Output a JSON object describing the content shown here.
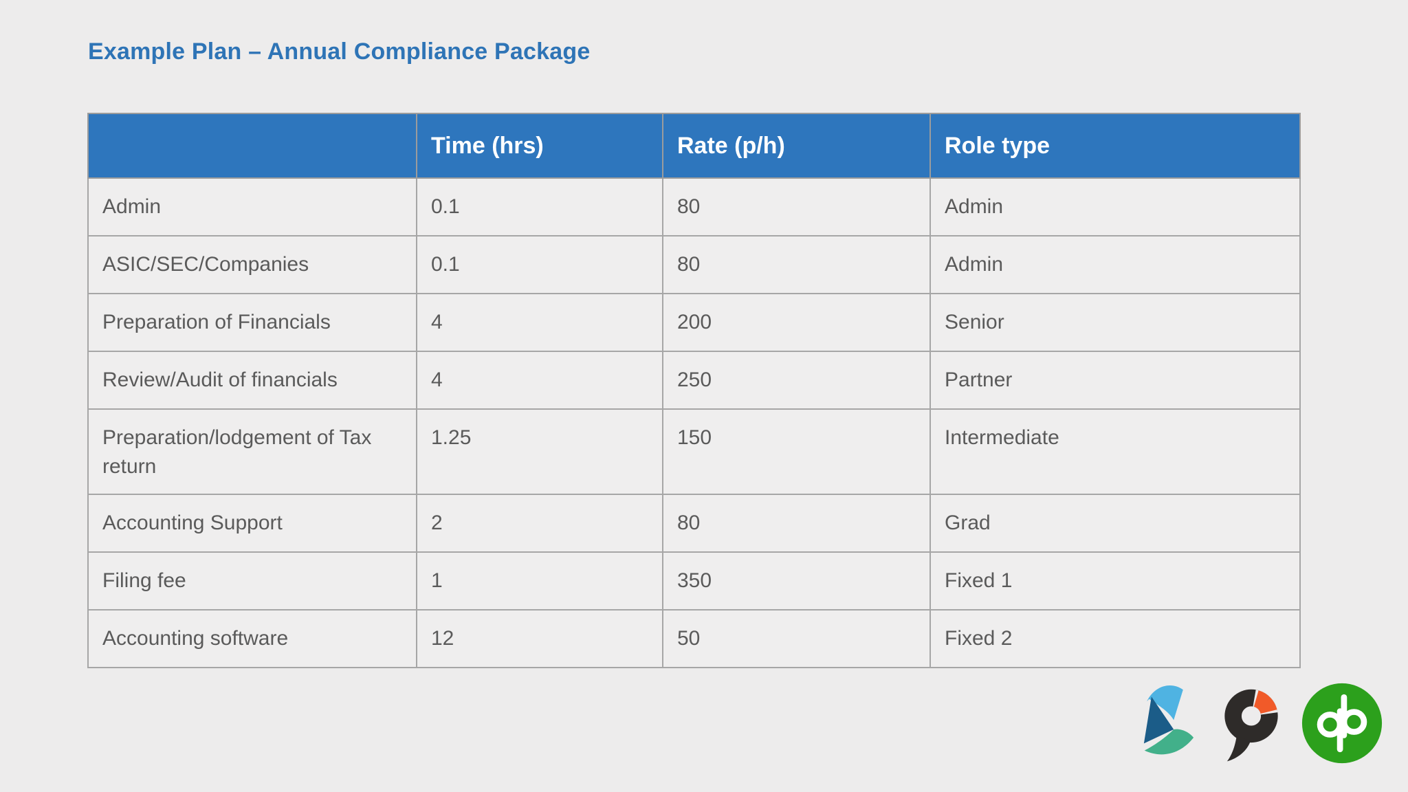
{
  "page": {
    "title": "Example Plan – Annual Compliance Package"
  },
  "table": {
    "columns": [
      "",
      "Time (hrs)",
      "Rate (p/h)",
      "Role type"
    ],
    "rows": [
      {
        "item": "Admin",
        "time": "0.1",
        "rate": "80",
        "role": "Admin"
      },
      {
        "item": "ASIC/SEC/Companies",
        "time": "0.1",
        "rate": "80",
        "role": "Admin"
      },
      {
        "item": "Preparation of Financials",
        "time": "4",
        "rate": "200",
        "role": "Senior"
      },
      {
        "item": "Review/Audit of financials",
        "time": "4",
        "rate": "250",
        "role": "Partner"
      },
      {
        "item": "Preparation/lodgement of Tax return",
        "time": "1.25",
        "rate": "150",
        "role": "Intermediate"
      },
      {
        "item": "Accounting Support",
        "time": "2",
        "rate": "80",
        "role": "Grad"
      },
      {
        "item": "Filing fee",
        "time": "1",
        "rate": "350",
        "role": "Fixed 1"
      },
      {
        "item": "Accounting software",
        "time": "12",
        "rate": "50",
        "role": "Fixed 2"
      }
    ]
  },
  "logos": [
    {
      "name": "flag-ribbon-logo"
    },
    {
      "name": "practice-ignition-logo"
    },
    {
      "name": "quickbooks-logo"
    }
  ],
  "colors": {
    "page_background": "#edecec",
    "header_blue": "#2e76bd",
    "title_blue": "#2e74b6",
    "cell_text": "#5a5a5a",
    "border_gray": "#a6a6a6",
    "flag_light_blue": "#4fb3e2",
    "flag_dark_blue": "#1b5c88",
    "flag_green": "#42b08a",
    "pi_black": "#2e2b29",
    "pi_orange": "#f15a29",
    "qb_green": "#2ca01c"
  }
}
